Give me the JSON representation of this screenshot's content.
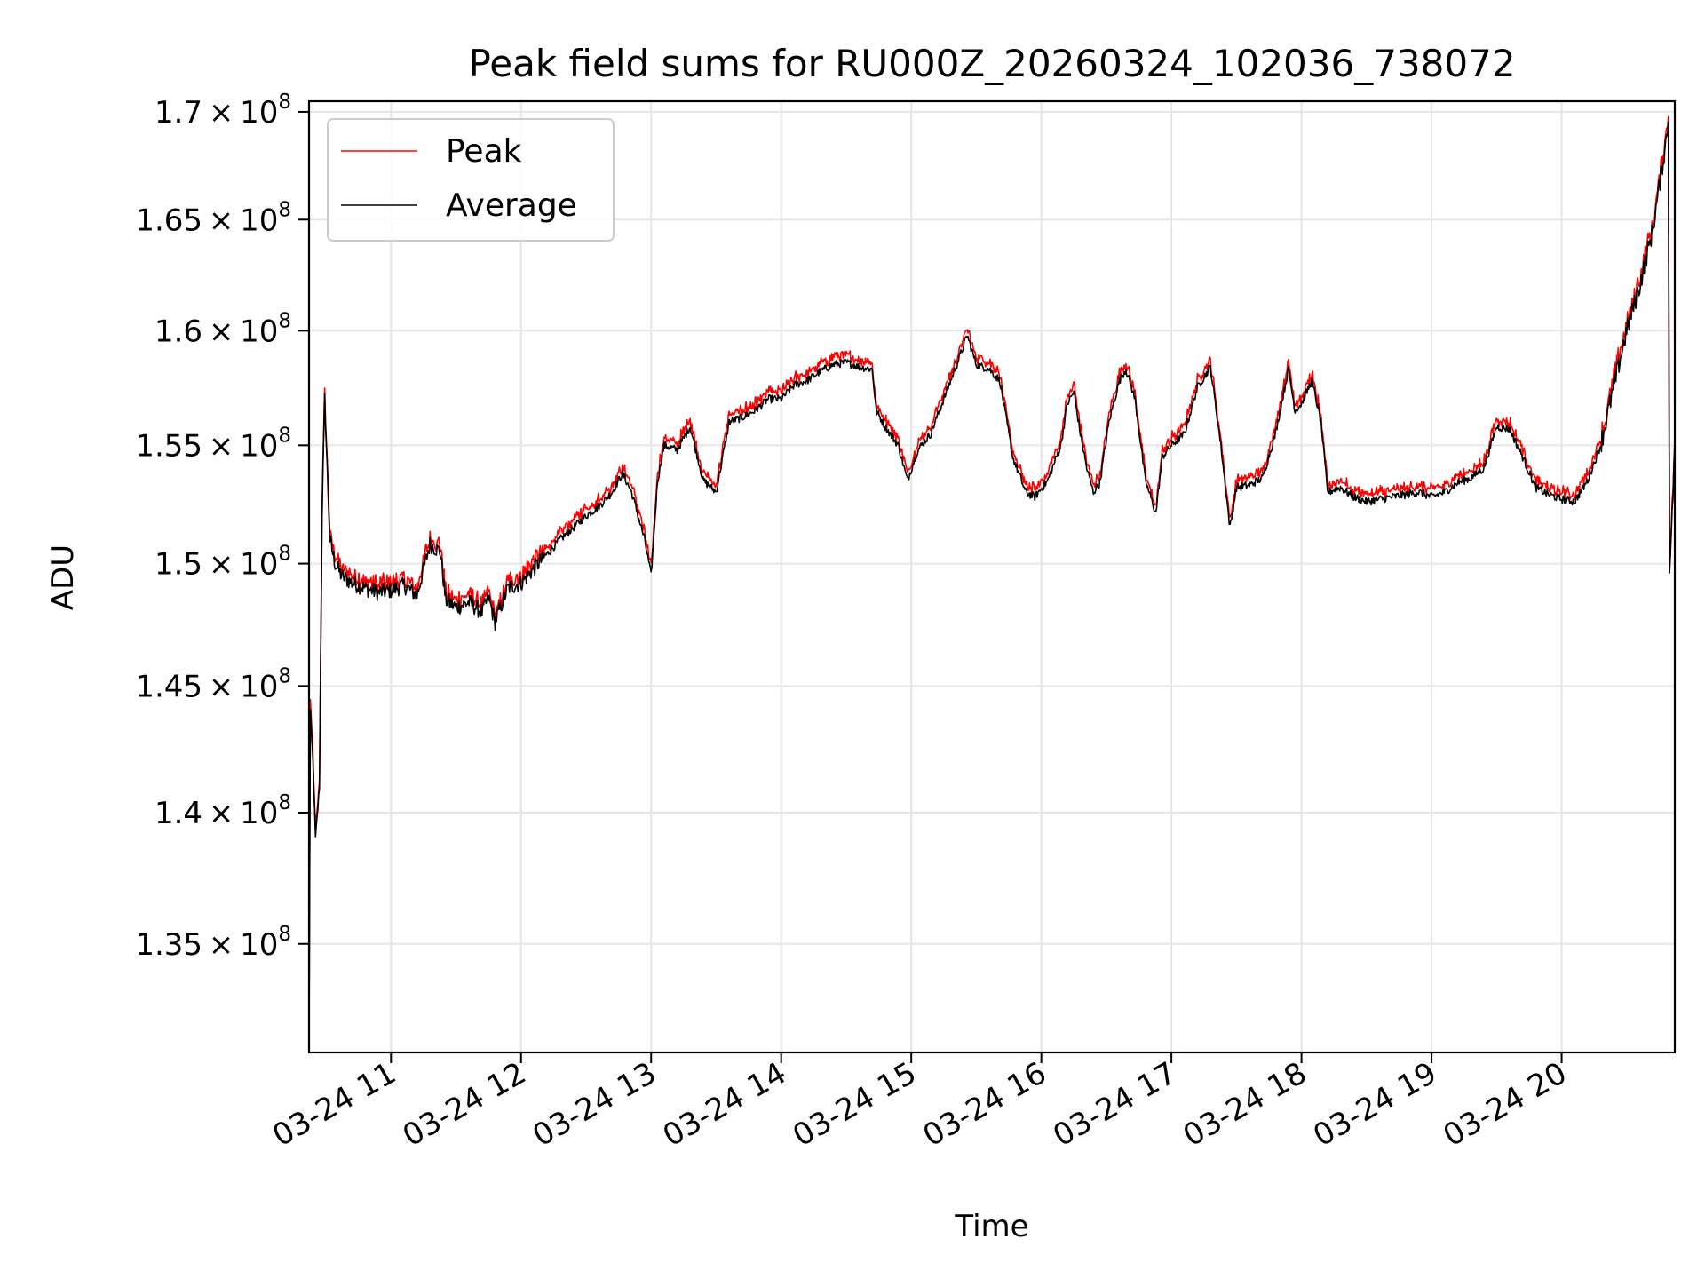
{
  "chart_data": {
    "type": "line",
    "title": "Peak field sums for RU000Z_20260324_102036_738072",
    "xlabel": "Time",
    "ylabel": "ADU",
    "date": "03-24",
    "xlim_hours": [
      10.37,
      20.87
    ],
    "ylim": [
      131000000,
      170500000
    ],
    "y_scale": "log",
    "grid": true,
    "legend_position": "upper-left",
    "x_ticks": [
      {
        "hour": 11,
        "label": "03-24 11"
      },
      {
        "hour": 12,
        "label": "03-24 12"
      },
      {
        "hour": 13,
        "label": "03-24 13"
      },
      {
        "hour": 14,
        "label": "03-24 14"
      },
      {
        "hour": 15,
        "label": "03-24 15"
      },
      {
        "hour": 16,
        "label": "03-24 16"
      },
      {
        "hour": 17,
        "label": "03-24 17"
      },
      {
        "hour": 18,
        "label": "03-24 18"
      },
      {
        "hour": 19,
        "label": "03-24 19"
      },
      {
        "hour": 20,
        "label": "03-24 20"
      }
    ],
    "y_ticks": [
      {
        "value": 135000000,
        "mantissa": "1.35",
        "base": "10",
        "exp": "8"
      },
      {
        "value": 140000000,
        "mantissa": "1.4",
        "base": "10",
        "exp": "8"
      },
      {
        "value": 145000000,
        "mantissa": "1.45",
        "base": "10",
        "exp": "8"
      },
      {
        "value": 150000000,
        "mantissa": "1.5",
        "base": "10",
        "exp": "8"
      },
      {
        "value": 155000000,
        "mantissa": "1.55",
        "base": "10",
        "exp": "8"
      },
      {
        "value": 160000000,
        "mantissa": "1.6",
        "base": "10",
        "exp": "8"
      },
      {
        "value": 165000000,
        "mantissa": "1.65",
        "base": "10",
        "exp": "8"
      },
      {
        "value": 170000000,
        "mantissa": "1.7",
        "base": "10",
        "exp": "8"
      }
    ],
    "average_points": [
      [
        10.37,
        131000000
      ],
      [
        10.38,
        144000000
      ],
      [
        10.4,
        142000000
      ],
      [
        10.42,
        139000000
      ],
      [
        10.45,
        141000000
      ],
      [
        10.47,
        152000000
      ],
      [
        10.49,
        157000000
      ],
      [
        10.51,
        154000000
      ],
      [
        10.53,
        151000000
      ],
      [
        10.57,
        150000000
      ],
      [
        10.62,
        149500000
      ],
      [
        10.7,
        149200000
      ],
      [
        10.8,
        149000000
      ],
      [
        10.9,
        148800000
      ],
      [
        11.0,
        148900000
      ],
      [
        11.1,
        149100000
      ],
      [
        11.2,
        148700000
      ],
      [
        11.3,
        150800000
      ],
      [
        11.38,
        150500000
      ],
      [
        11.42,
        148500000
      ],
      [
        11.5,
        148200000
      ],
      [
        11.6,
        148400000
      ],
      [
        11.7,
        148000000
      ],
      [
        11.75,
        148600000
      ],
      [
        11.8,
        147600000
      ],
      [
        11.9,
        149000000
      ],
      [
        12.0,
        149200000
      ],
      [
        12.1,
        149800000
      ],
      [
        12.2,
        150400000
      ],
      [
        12.3,
        151000000
      ],
      [
        12.4,
        151500000
      ],
      [
        12.5,
        152000000
      ],
      [
        12.6,
        152400000
      ],
      [
        12.7,
        153000000
      ],
      [
        12.78,
        153800000
      ],
      [
        12.85,
        153000000
      ],
      [
        12.9,
        152000000
      ],
      [
        12.95,
        151000000
      ],
      [
        13.0,
        149500000
      ],
      [
        13.05,
        153500000
      ],
      [
        13.1,
        155000000
      ],
      [
        13.2,
        154800000
      ],
      [
        13.3,
        155800000
      ],
      [
        13.4,
        153500000
      ],
      [
        13.5,
        153000000
      ],
      [
        13.55,
        154500000
      ],
      [
        13.6,
        156000000
      ],
      [
        13.7,
        156200000
      ],
      [
        13.8,
        156500000
      ],
      [
        13.9,
        157000000
      ],
      [
        14.0,
        157000000
      ],
      [
        14.1,
        157600000
      ],
      [
        14.2,
        157800000
      ],
      [
        14.3,
        158200000
      ],
      [
        14.4,
        158500000
      ],
      [
        14.5,
        158600000
      ],
      [
        14.6,
        158400000
      ],
      [
        14.7,
        158300000
      ],
      [
        14.73,
        156500000
      ],
      [
        14.8,
        155800000
      ],
      [
        14.9,
        155000000
      ],
      [
        14.97,
        153500000
      ],
      [
        15.05,
        154800000
      ],
      [
        15.15,
        155500000
      ],
      [
        15.25,
        157000000
      ],
      [
        15.35,
        158500000
      ],
      [
        15.43,
        159800000
      ],
      [
        15.5,
        158500000
      ],
      [
        15.6,
        158300000
      ],
      [
        15.68,
        157800000
      ],
      [
        15.78,
        154500000
      ],
      [
        15.88,
        153000000
      ],
      [
        15.95,
        152800000
      ],
      [
        16.05,
        153500000
      ],
      [
        16.15,
        155000000
      ],
      [
        16.2,
        156800000
      ],
      [
        16.25,
        157300000
      ],
      [
        16.3,
        155500000
      ],
      [
        16.35,
        154000000
      ],
      [
        16.4,
        153000000
      ],
      [
        16.45,
        153400000
      ],
      [
        16.52,
        156000000
      ],
      [
        16.6,
        157800000
      ],
      [
        16.65,
        158300000
      ],
      [
        16.72,
        157000000
      ],
      [
        16.8,
        153500000
      ],
      [
        16.88,
        152100000
      ],
      [
        16.93,
        154500000
      ],
      [
        17.0,
        155000000
      ],
      [
        17.1,
        155500000
      ],
      [
        17.2,
        157500000
      ],
      [
        17.3,
        158400000
      ],
      [
        17.38,
        155000000
      ],
      [
        17.45,
        151500000
      ],
      [
        17.5,
        153200000
      ],
      [
        17.6,
        153300000
      ],
      [
        17.7,
        153600000
      ],
      [
        17.8,
        155500000
      ],
      [
        17.9,
        158300000
      ],
      [
        17.95,
        156500000
      ],
      [
        18.0,
        156800000
      ],
      [
        18.08,
        157800000
      ],
      [
        18.15,
        156000000
      ],
      [
        18.2,
        153000000
      ],
      [
        18.3,
        153200000
      ],
      [
        18.4,
        152800000
      ],
      [
        18.5,
        152600000
      ],
      [
        18.6,
        152700000
      ],
      [
        18.7,
        152800000
      ],
      [
        18.8,
        152900000
      ],
      [
        18.9,
        153000000
      ],
      [
        19.0,
        152800000
      ],
      [
        19.1,
        153000000
      ],
      [
        19.2,
        153400000
      ],
      [
        19.3,
        153600000
      ],
      [
        19.4,
        154000000
      ],
      [
        19.5,
        155800000
      ],
      [
        19.6,
        155700000
      ],
      [
        19.7,
        154500000
      ],
      [
        19.8,
        153200000
      ],
      [
        19.9,
        152900000
      ],
      [
        20.0,
        152700000
      ],
      [
        20.1,
        152600000
      ],
      [
        20.2,
        153500000
      ],
      [
        20.3,
        155000000
      ],
      [
        20.4,
        157500000
      ],
      [
        20.5,
        160000000
      ],
      [
        20.6,
        162000000
      ],
      [
        20.7,
        164500000
      ],
      [
        20.75,
        166500000
      ],
      [
        20.8,
        168500000
      ],
      [
        20.82,
        169500000
      ],
      [
        20.83,
        150000000
      ],
      [
        20.85,
        152000000
      ],
      [
        20.87,
        155000000
      ]
    ],
    "series": [
      {
        "name": "Peak",
        "color": "#ff0000",
        "offset": 150000
      },
      {
        "name": "Average",
        "color": "#000000",
        "offset": 0
      }
    ]
  }
}
